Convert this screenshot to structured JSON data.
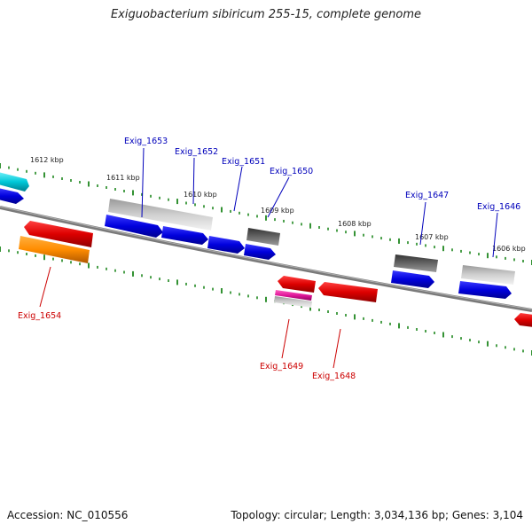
{
  "title": "Exiguobacterium sibiricum 255-15, complete genome",
  "footer": {
    "accession": "Accession: NC_010556",
    "summary": "Topology: circular; Length: 3,034,136 bp; Genes: 3,104"
  },
  "scale_labels": [
    "1612 kbp",
    "1611 kbp",
    "1610 kbp",
    "1609 kbp",
    "1608 kbp",
    "1607 kbp",
    "1606 kbp"
  ],
  "genes": [
    {
      "label": "Exig_1653",
      "strand": "forward",
      "color": "#0000dd"
    },
    {
      "label": "Exig_1652",
      "strand": "forward",
      "color": "#0000dd"
    },
    {
      "label": "Exig_1651",
      "strand": "forward",
      "color": "#0000dd"
    },
    {
      "label": "Exig_1650",
      "strand": "forward",
      "color": "#0000dd"
    },
    {
      "label": "Exig_1647",
      "strand": "forward",
      "color": "#0000dd"
    },
    {
      "label": "Exig_1646",
      "strand": "forward",
      "color": "#0000dd"
    },
    {
      "label": "Exig_1654",
      "strand": "reverse",
      "color": "#dd0000"
    },
    {
      "label": "Exig_1649",
      "strand": "reverse",
      "color": "#dd0000"
    },
    {
      "label": "Exig_1648",
      "strand": "reverse",
      "color": "#dd0000"
    }
  ],
  "colors": {
    "forward": "#0000dd",
    "reverse": "#dd0000",
    "label_forward": "#0000bb",
    "label_reverse": "#cc0000",
    "cyan": "#00c8d8",
    "orange": "#ff8c00",
    "magenta": "#e0189a",
    "light_gray": "#b8b8b8",
    "dark_gray": "#555555",
    "backbone": "#808080",
    "tick": "#007700"
  }
}
